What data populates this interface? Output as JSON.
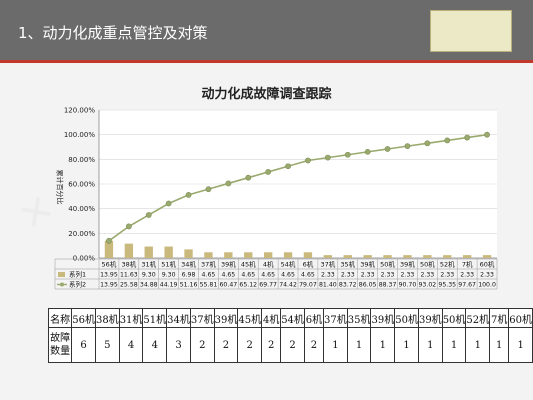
{
  "slide": {
    "title": "1、动力化成重点管控及对策"
  },
  "chart_data": {
    "type": "bar",
    "title": "动力化成故障调查跟踪",
    "ylabel": "累计百分比",
    "categories": [
      "56机",
      "38机",
      "31机",
      "51机",
      "34机",
      "37机",
      "39机",
      "45机",
      "4机",
      "54机",
      "6机",
      "37机",
      "35机",
      "39机",
      "50机",
      "39机",
      "50机",
      "52机",
      "7机",
      "60机"
    ],
    "yticks": [
      "120.00%",
      "100.00%",
      "80.00%",
      "60.00%",
      "40.00%",
      "20.00%",
      "0.00%"
    ],
    "ylim": [
      0,
      120
    ],
    "series": [
      {
        "name": "系列1",
        "type": "bar",
        "color": "#c9b97d",
        "values": [
          13.95,
          11.63,
          9.3,
          9.3,
          6.98,
          4.65,
          4.65,
          4.65,
          4.65,
          4.65,
          4.65,
          2.33,
          2.33,
          2.33,
          2.33,
          2.33,
          2.33,
          2.33,
          2.33,
          2.33
        ],
        "labels": [
          "13.95",
          "11.63",
          "9.30",
          "9.30",
          "6.98",
          "4.65",
          "4.65",
          "4.65",
          "4.65",
          "4.65",
          "4.65",
          "2.33",
          "2.33",
          "2.33",
          "2.33",
          "2.33",
          "2.33",
          "2.33",
          "2.33",
          "2.33"
        ]
      },
      {
        "name": "系列2",
        "type": "line",
        "color": "#9aaa6e",
        "values": [
          13.95,
          25.58,
          34.88,
          44.19,
          51.16,
          55.81,
          60.47,
          65.12,
          69.77,
          74.42,
          79.07,
          81.4,
          83.72,
          86.05,
          88.37,
          90.7,
          93.02,
          95.35,
          97.67,
          100.0
        ],
        "labels": [
          "13.95",
          "25.58",
          "34.88",
          "44.19",
          "51.16",
          "55.81",
          "60.47",
          "65.12",
          "69.77",
          "74.42",
          "79.07",
          "81.40",
          "83.72",
          "86.05",
          "88.37",
          "90.70",
          "93.02",
          "95.35",
          "97.67",
          "100.0"
        ]
      }
    ]
  },
  "table": {
    "row1_label": "名称",
    "row2_label": "故障数量",
    "names": [
      "56机",
      "38机",
      "31机",
      "51机",
      "34机",
      "37机",
      "39机",
      "45机",
      "4机",
      "54机",
      "6机",
      "37机",
      "35机",
      "39机",
      "50机",
      "39机",
      "50机",
      "52机",
      "7机",
      "60机"
    ],
    "counts": [
      "6",
      "5",
      "4",
      "4",
      "3",
      "2",
      "2",
      "2",
      "2",
      "2",
      "2",
      "1",
      "1",
      "1",
      "1",
      "1",
      "1",
      "1",
      "1",
      "1"
    ]
  }
}
